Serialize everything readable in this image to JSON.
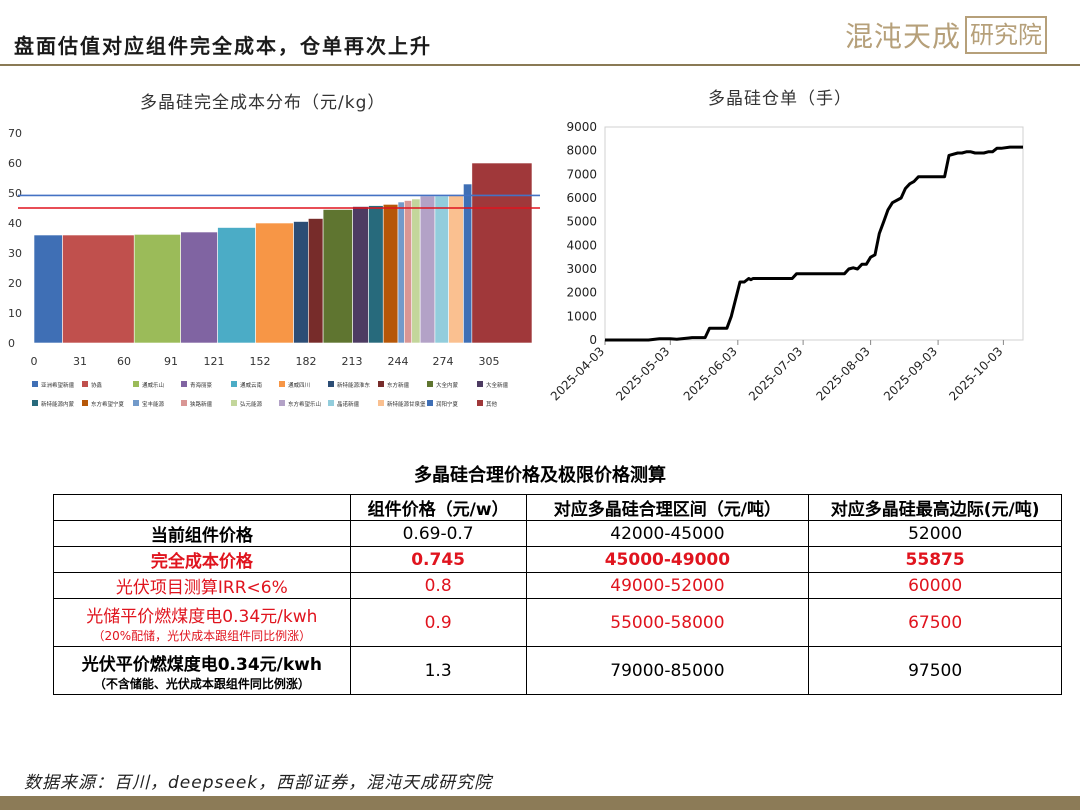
{
  "header": {
    "title": "盘面估值对应组件完全成本，仓单再次上升"
  },
  "logo": {
    "text": "混沌天成",
    "box_text": "研究院"
  },
  "colors": {
    "brand": "#b6a07a",
    "accent_red": "#e0141e",
    "footer": "#8c7b57"
  },
  "chart_data": [
    {
      "type": "bar",
      "title": "多晶硅完全成本分布（元/kg）",
      "x_ticks": [
        0,
        31,
        60,
        91,
        121,
        152,
        182,
        213,
        244,
        274,
        305
      ],
      "y_ticks": [
        0,
        10,
        20,
        30,
        40,
        50,
        60,
        70
      ],
      "ylim": [
        0,
        70
      ],
      "xlim": [
        0,
        330
      ],
      "reference_lines": [
        {
          "value": 49.2,
          "color": "#4472c4"
        },
        {
          "value": 45.0,
          "color": "#e0141e"
        }
      ],
      "bars": [
        {
          "x0": 0,
          "width": 27,
          "value": 36.0,
          "color": "#3f6fb5"
        },
        {
          "x0": 27,
          "width": 68,
          "value": 36.0,
          "color": "#c0504d"
        },
        {
          "x0": 95,
          "width": 44,
          "value": 36.2,
          "color": "#9bbb59"
        },
        {
          "x0": 139,
          "width": 35,
          "value": 37.0,
          "color": "#8064a2"
        },
        {
          "x0": 174,
          "width": 36,
          "value": 38.5,
          "color": "#4bacc6"
        },
        {
          "x0": 210,
          "width": 36,
          "value": 40.0,
          "color": "#f79646"
        },
        {
          "x0": 246,
          "width": 14,
          "value": 40.5,
          "color": "#2c4d75"
        },
        {
          "x0": 260,
          "width": 14,
          "value": 41.5,
          "color": "#772c2a"
        },
        {
          "x0": 274,
          "width": 28,
          "value": 44.5,
          "color": "#5f7530"
        },
        {
          "x0": 302,
          "width": 15,
          "value": 45.5,
          "color": "#4d3b62"
        },
        {
          "x0": 317,
          "width": 14,
          "value": 45.8,
          "color": "#276a7c"
        },
        {
          "x0": 331,
          "width": 14,
          "value": 46.2,
          "color": "#b65708"
        },
        {
          "x0": 345,
          "width": 6,
          "value": 47.0,
          "color": "#729aca"
        },
        {
          "x0": 351,
          "width": 7,
          "value": 47.5,
          "color": "#d99694"
        },
        {
          "x0": 358,
          "width": 8,
          "value": 48.0,
          "color": "#c3d69b"
        },
        {
          "x0": 366,
          "width": 14,
          "value": 49.0,
          "color": "#b3a2c7"
        },
        {
          "x0": 380,
          "width": 13,
          "value": 49.0,
          "color": "#92cddc"
        },
        {
          "x0": 393,
          "width": 14,
          "value": 49.5,
          "color": "#fac090"
        },
        {
          "x0": 407,
          "width": 8,
          "value": 53.0,
          "color": "#3f6fb5"
        },
        {
          "x0": 415,
          "width": 57,
          "value": 60.0,
          "color": "#a0383a"
        }
      ],
      "legend": [
        {
          "name": "亚洲希望新疆",
          "color": "#3f6fb5"
        },
        {
          "name": "协鑫",
          "color": "#c0504d"
        },
        {
          "name": "通威乐山",
          "color": "#9bbb59"
        },
        {
          "name": "青海丽豪",
          "color": "#8064a2"
        },
        {
          "name": "通威云南",
          "color": "#4bacc6"
        },
        {
          "name": "通威四川",
          "color": "#f79646"
        },
        {
          "name": "新特能源淮东",
          "color": "#2c4d75"
        },
        {
          "name": "东方新疆",
          "color": "#772c2a"
        },
        {
          "name": "大全内蒙",
          "color": "#5f7530"
        },
        {
          "name": "大全新疆",
          "color": "#4d3b62"
        },
        {
          "name": "新特能源内蒙",
          "color": "#276a7c"
        },
        {
          "name": "东方希望宁夏",
          "color": "#b65708"
        },
        {
          "name": "宝丰能源",
          "color": "#729aca"
        },
        {
          "name": "狭路新疆",
          "color": "#d99694"
        },
        {
          "name": "弘元能源",
          "color": "#c3d69b"
        },
        {
          "name": "东方希望乐山",
          "color": "#b3a2c7"
        },
        {
          "name": "晶诺新疆",
          "color": "#92cddc"
        },
        {
          "name": "新特能源甘泉堡",
          "color": "#fac090"
        },
        {
          "name": "润阳宁夏",
          "color": "#3f6fb5"
        },
        {
          "name": "其他",
          "color": "#a0383a"
        }
      ]
    },
    {
      "type": "line",
      "title": "多晶硅仓单（手）",
      "x_ticks": [
        "2025-04-03",
        "2025-05-03",
        "2025-06-03",
        "2025-07-03",
        "2025-08-03",
        "2025-09-03",
        "2025-10-03"
      ],
      "y_ticks": [
        0,
        1000,
        2000,
        3000,
        4000,
        5000,
        6000,
        7000,
        8000,
        9000
      ],
      "ylim": [
        0,
        9000
      ],
      "x": [
        0,
        20,
        25,
        30,
        33,
        38,
        40,
        46,
        48,
        56,
        58,
        62,
        64,
        66,
        67,
        68,
        70,
        72,
        76,
        78,
        80,
        82,
        84,
        86,
        88,
        92,
        96,
        98,
        100,
        110,
        112,
        114,
        116,
        118,
        120,
        122,
        124,
        126,
        128,
        130,
        132,
        136,
        138,
        140,
        142,
        144,
        146,
        148,
        150,
        156,
        158,
        162,
        164,
        166,
        168,
        170,
        172,
        174,
        176,
        178,
        180,
        182,
        186,
        188,
        190,
        192
      ],
      "values": [
        0,
        0,
        50,
        50,
        30,
        80,
        100,
        100,
        500,
        500,
        1000,
        2450,
        2450,
        2600,
        2550,
        2600,
        2600,
        2600,
        2600,
        2600,
        2600,
        2600,
        2600,
        2600,
        2800,
        2800,
        2800,
        2800,
        2800,
        2800,
        3000,
        3050,
        3000,
        3200,
        3200,
        3500,
        3600,
        4500,
        5000,
        5500,
        5800,
        6000,
        6400,
        6600,
        6700,
        6900,
        6900,
        6900,
        6900,
        6900,
        7800,
        7900,
        7900,
        7950,
        7950,
        7900,
        7900,
        7900,
        7950,
        7950,
        8100,
        8100,
        8150,
        8150,
        8150,
        8150
      ]
    }
  ],
  "table": {
    "title": "多晶硅合理价格及极限价格测算",
    "headers": [
      "",
      "组件价格（元/w）",
      "对应多晶硅合理区间（元/吨）",
      "对应多晶硅最高边际(元/吨)"
    ],
    "rows": [
      {
        "label": "当前组件价格",
        "note": "",
        "price": "0.69-0.7",
        "range": "42000-45000",
        "max": "52000"
      },
      {
        "label": "完全成本价格",
        "note": "",
        "price": "0.745",
        "range": "45000-49000",
        "max": "55875"
      },
      {
        "label": "光伏项目测算IRR<6%",
        "note": "",
        "price": "0.8",
        "range": "49000-52000",
        "max": "60000"
      },
      {
        "label": "光储平价燃煤度电0.34元/kwh",
        "note": "（20%配储，光伏成本跟组件同比例涨）",
        "price": "0.9",
        "range": "55000-58000",
        "max": "67500"
      },
      {
        "label": "光伏平价燃煤度电0.34元/kwh",
        "note": "（不含储能、光伏成本跟组件同比例涨）",
        "price": "1.3",
        "range": "79000-85000",
        "max": "97500"
      }
    ]
  },
  "source": "数据来源：百川，deepseek，西部证券，混沌天成研究院"
}
